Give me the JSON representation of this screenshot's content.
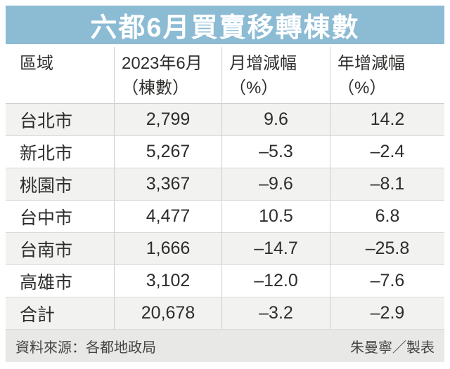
{
  "title": "六都6月買賣移轉棟數",
  "table": {
    "headers": [
      {
        "line1": "區域",
        "line2": ""
      },
      {
        "line1": "2023年6月",
        "line2": "（棟數）"
      },
      {
        "line1": "月增減幅",
        "line2": "（%）"
      },
      {
        "line1": "年增減幅",
        "line2": "（%）"
      }
    ],
    "rows": [
      {
        "region": "台北市",
        "units": "2,799",
        "mom": "9.6",
        "yoy": "14.2"
      },
      {
        "region": "新北市",
        "units": "5,267",
        "mom": "–5.3",
        "yoy": "–2.4"
      },
      {
        "region": "桃園市",
        "units": "3,367",
        "mom": "–9.6",
        "yoy": "–8.1"
      },
      {
        "region": "台中市",
        "units": "4,477",
        "mom": "10.5",
        "yoy": "6.8"
      },
      {
        "region": "台南市",
        "units": "1,666",
        "mom": "–14.7",
        "yoy": "–25.8"
      },
      {
        "region": "高雄市",
        "units": "3,102",
        "mom": "–12.0",
        "yoy": "–7.6"
      },
      {
        "region": "合計",
        "units": "20,678",
        "mom": "–3.2",
        "yoy": "–2.9"
      }
    ]
  },
  "footer": {
    "source": "資料來源：各都地政局",
    "credit": "朱曼寧／製表"
  },
  "colors": {
    "title_bg": "#8CBBD4",
    "title_text": "#FFFFFF",
    "row_alt_bg": "#F2F2F1",
    "footer_bg": "#E8E8E7",
    "border": "#CFCFCF",
    "text": "#2E2D2B"
  },
  "chart_data": {
    "type": "table",
    "title": "六都6月買賣移轉棟數",
    "columns": [
      "區域",
      "2023年6月（棟數）",
      "月增減幅（%）",
      "年增減幅（%）"
    ],
    "rows": [
      [
        "台北市",
        2799,
        9.6,
        14.2
      ],
      [
        "新北市",
        5267,
        -5.3,
        -2.4
      ],
      [
        "桃園市",
        3367,
        -9.6,
        -8.1
      ],
      [
        "台中市",
        4477,
        10.5,
        6.8
      ],
      [
        "台南市",
        1666,
        -14.7,
        -25.8
      ],
      [
        "高雄市",
        3102,
        -12.0,
        -7.6
      ],
      [
        "合計",
        20678,
        -3.2,
        -2.9
      ]
    ],
    "source": "資料來源：各都地政局",
    "credit": "朱曼寧／製表"
  }
}
